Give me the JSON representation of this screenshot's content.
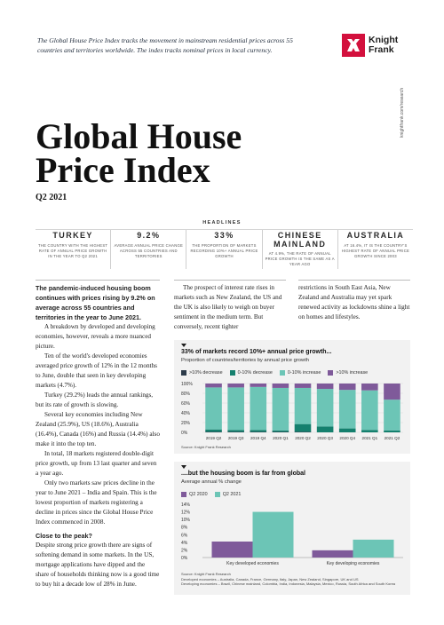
{
  "intro": "The Global House Price Index tracks the movement in mainstream residential prices across 55 countries and territories worldwide. The index tracks nominal prices in local currency.",
  "logo": {
    "line1": "Knight",
    "line2": "Frank"
  },
  "side_url": "knightfrank.com/research",
  "title_line1": "Global House",
  "title_line2": "Price Index",
  "subtitle": "Q2 2021",
  "headlines": {
    "label": "HEADLINES",
    "items": [
      {
        "head": "TURKEY",
        "desc": "THE COUNTRY WITH THE HIGHEST RATE OF ANNUAL PRICE GROWTH IN THE YEAR TO Q2 2021"
      },
      {
        "head": "9.2%",
        "desc": "AVERAGE ANNUAL PRICE CHANGE ACROSS 55 COUNTRIES AND TERRITORIES"
      },
      {
        "head": "33%",
        "desc": "THE PROPORTION OF MARKETS RECORDING 10%+ ANNUAL PRICE GROWTH"
      },
      {
        "head": "CHINESE MAINLAND",
        "desc": "AT 4.9%, THE RATE OF ANNUAL PRICE GROWTH IS THE SAME AS A YEAR AGO"
      },
      {
        "head": "AUSTRALIA",
        "desc": "AT 16.4%, IT IS THE COUNTRY'S HIGHEST RATE OF ANNUAL PRICE GROWTH SINCE 2003"
      }
    ]
  },
  "col1": {
    "lead": "The pandemic-induced housing boom continues with prices rising by 9.2% on average across 55 countries and territories in the year to June 2021.",
    "p1": "A breakdown by developed and developing economies, however, reveals a more nuanced picture.",
    "p2": "Ten of the world's developed economies averaged price growth of 12% in the 12 months to June, double that seen in key developing markets (4.7%).",
    "p3": "Turkey (29.2%) leads the annual rankings, but its rate of growth is slowing.",
    "p4": "Several key economies including New Zealand (25.9%), US (18.6%), Australia (16.4%), Canada (16%) and Russia (14.4%) also make it into the top ten.",
    "p5": "In total, 18 markets registered double-digit price growth, up from 13 last quarter and seven a year ago.",
    "p6": "Only two markets saw prices decline in the year to June 2021 – India and Spain. This is the lowest proportion of markets registering a decline in prices since the Global House Price Index commenced in 2008.",
    "heading": "Close to the peak?",
    "p7": "Despite strong price growth there are signs of softening demand in some markets. In the US, mortgage applications have dipped and the share of households thinking now is a good time to buy hit a decade low of 28% in June."
  },
  "col2": {
    "p1": "The prospect of interest rate rises in markets such as New Zealand, the US and the UK is also likely to weigh on buyer sentiment in the medium term. But conversely, recent tighter"
  },
  "col3": {
    "p1": "restrictions in South East Asia, New Zealand and Australia may yet spark renewed activity as lockdowns shine a light on homes and lifestyles."
  },
  "chart1_source": "Source: Knight Frank Research",
  "chart2_source": "Source: Knight Frank Research",
  "chart2_notes": {
    "developed": "Developed economies – Australia, Canada, France, Germany, Italy, Japan, New Zealand, Singapore, UK and US",
    "developing": "Developing economies – Brazil, Chinese mainland, Colombia, India, Indonesia, Malaysia, Mexico, Russia, South Africa and South Korea"
  },
  "colors": {
    "brand_red": "#d3103d",
    "dec10": "#2c3b4a",
    "dec0_10": "#15806e",
    "inc0_10": "#6cc5b6",
    "inc10": "#7f5a9a",
    "q2_2020": "#7f5a9a",
    "q2_2021": "#6cc5b6"
  },
  "chart_data": [
    {
      "type": "bar",
      "stacked": true,
      "title": "33% of markets record 10%+ annual price growth...",
      "subtitle": "Proportion of countries/territories by annual price growth",
      "categories": [
        "2019 Q2",
        "2019 Q3",
        "2019 Q4",
        "2020 Q1",
        "2020 Q2",
        "2020 Q3",
        "2020 Q4",
        "2021 Q1",
        "2021 Q2"
      ],
      "series": [
        {
          "name": ">10% decrease",
          "values": [
            1,
            1,
            1,
            1,
            1,
            0,
            0,
            0,
            0
          ]
        },
        {
          "name": "0-10% decrease",
          "values": [
            5,
            4,
            4,
            3,
            16,
            12,
            8,
            5,
            4
          ]
        },
        {
          "name": "0-10% increase",
          "values": [
            86,
            87,
            88,
            87,
            74,
            77,
            79,
            81,
            63
          ]
        },
        {
          "name": ">10% increase",
          "values": [
            8,
            8,
            7,
            9,
            9,
            11,
            13,
            14,
            33
          ]
        }
      ],
      "yticks": [
        "100%",
        "80%",
        "60%",
        "40%",
        "20%",
        "0%"
      ],
      "ylim": [
        0,
        100
      ],
      "legend": "top"
    },
    {
      "type": "bar",
      "title": "....but the housing boom is far from global",
      "subtitle": "Average annual % change",
      "categories": [
        "Key developed economies",
        "Key developing economies"
      ],
      "series": [
        {
          "name": "Q2 2020",
          "values": [
            4.2,
            1.9
          ]
        },
        {
          "name": "Q2 2021",
          "values": [
            12.0,
            4.7
          ]
        }
      ],
      "yticks": [
        "14%",
        "12%",
        "10%",
        "8%",
        "6%",
        "4%",
        "2%",
        "0%"
      ],
      "ylim": [
        0,
        14
      ],
      "legend": "top"
    }
  ]
}
